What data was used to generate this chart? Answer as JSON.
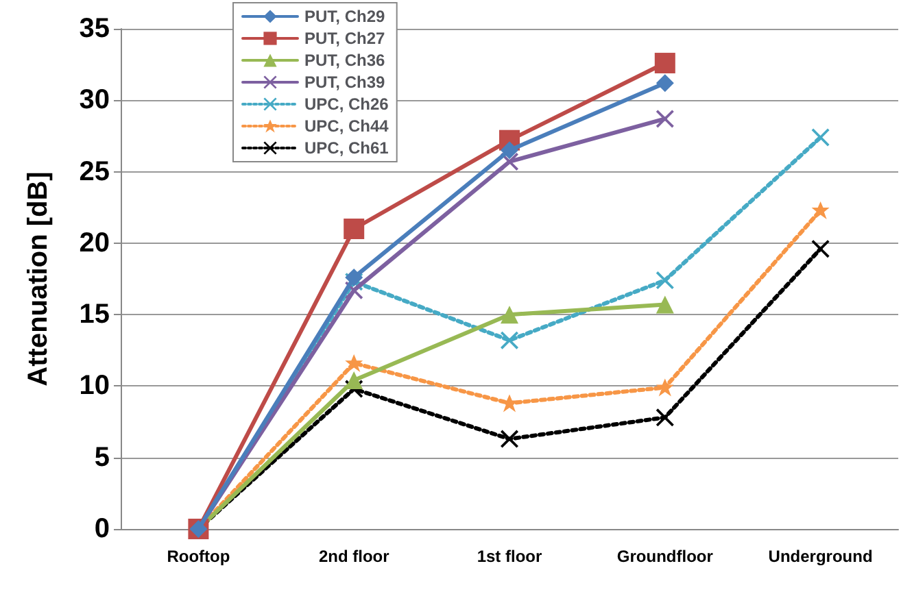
{
  "chart_data": {
    "type": "line",
    "ylabel": "Attenuation [dB]",
    "categories": [
      "Rooftop",
      "2nd floor",
      "1st floor",
      "Groundfloor",
      "Underground"
    ],
    "ylim": [
      0,
      35
    ],
    "yticks": [
      0,
      5,
      10,
      15,
      20,
      25,
      30,
      35
    ],
    "grid": "y",
    "legend": "top left",
    "series": [
      {
        "name": "PUT, Ch29",
        "color": "#4a7ebb",
        "marker": "diamond",
        "line_style": "solid",
        "values": [
          0,
          17.6,
          26.5,
          31.2,
          null
        ]
      },
      {
        "name": "PUT, Ch27",
        "color": "#be4b48",
        "marker": "square",
        "line_style": "solid",
        "values": [
          0,
          21,
          27.2,
          32.6,
          null
        ]
      },
      {
        "name": "PUT, Ch36",
        "color": "#98b954",
        "marker": "triangle",
        "line_style": "solid",
        "values": [
          0,
          10.4,
          15,
          15.7,
          null
        ]
      },
      {
        "name": "PUT, Ch39",
        "color": "#7d60a0",
        "marker": "cross",
        "line_style": "solid",
        "values": [
          0,
          16.7,
          25.7,
          28.7,
          null
        ]
      },
      {
        "name": "UPC, Ch26",
        "color": "#46aac5",
        "marker": "cross",
        "line_style": "dotted",
        "values": [
          0,
          17.3,
          13.2,
          17.4,
          27.4
        ]
      },
      {
        "name": "UPC, Ch44",
        "color": "#f79646",
        "marker": "star",
        "line_style": "dotted",
        "values": [
          0,
          11.6,
          8.8,
          9.9,
          22.3
        ]
      },
      {
        "name": "UPC, Ch61",
        "color": "#000000",
        "marker": "cross",
        "line_style": "dotted",
        "values": [
          0,
          9.8,
          6.3,
          7.8,
          19.6
        ]
      }
    ]
  }
}
